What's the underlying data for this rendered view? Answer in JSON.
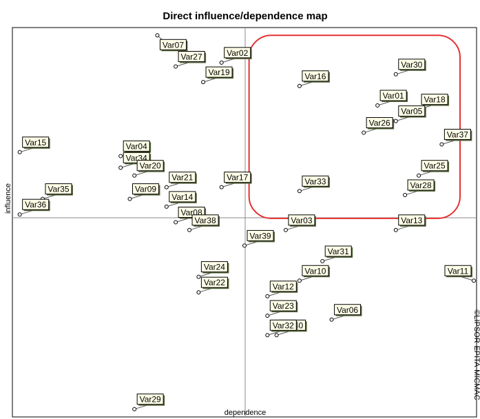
{
  "chart_data": {
    "type": "scatter",
    "title": "Direct influence/dependence map",
    "xlabel": "dependence",
    "ylabel": "influence",
    "side_note": "©LIPSOR-EPITA-MICMAC",
    "xlim": [
      0,
      100
    ],
    "ylim": [
      0,
      100
    ],
    "highlight": {
      "shape": "rounded-rectangle",
      "color": "#e53030",
      "x_range": [
        51,
        97
      ],
      "y_range": [
        51,
        98
      ]
    },
    "points": [
      {
        "label": "Var07",
        "x": 31,
        "y": 98
      },
      {
        "label": "Var02",
        "x": 45,
        "y": 91
      },
      {
        "label": "Var27",
        "x": 35,
        "y": 90
      },
      {
        "label": "Var19",
        "x": 41,
        "y": 86
      },
      {
        "label": "Var30",
        "x": 83,
        "y": 88
      },
      {
        "label": "Var16",
        "x": 62,
        "y": 85
      },
      {
        "label": "Var01",
        "x": 79,
        "y": 80
      },
      {
        "label": "Var18",
        "x": 88,
        "y": 79
      },
      {
        "label": "Var26",
        "x": 76,
        "y": 73
      },
      {
        "label": "Var05",
        "x": 83,
        "y": 76
      },
      {
        "label": "Var37",
        "x": 93,
        "y": 70
      },
      {
        "label": "Var15",
        "x": 1,
        "y": 68
      },
      {
        "label": "Var04",
        "x": 23,
        "y": 67
      },
      {
        "label": "Var34",
        "x": 23,
        "y": 64
      },
      {
        "label": "Var20",
        "x": 26,
        "y": 62
      },
      {
        "label": "Var21",
        "x": 33,
        "y": 59
      },
      {
        "label": "Var17",
        "x": 45,
        "y": 59
      },
      {
        "label": "Var33",
        "x": 62,
        "y": 58
      },
      {
        "label": "Var28",
        "x": 85,
        "y": 57
      },
      {
        "label": "Var25",
        "x": 88,
        "y": 62
      },
      {
        "label": "Var35",
        "x": 6,
        "y": 56
      },
      {
        "label": "Var09",
        "x": 25,
        "y": 56
      },
      {
        "label": "Var14",
        "x": 33,
        "y": 54
      },
      {
        "label": "Var08",
        "x": 35,
        "y": 50
      },
      {
        "label": "Var36",
        "x": 1,
        "y": 52
      },
      {
        "label": "Var03",
        "x": 59,
        "y": 48
      },
      {
        "label": "Var13",
        "x": 83,
        "y": 48
      },
      {
        "label": "Var38",
        "x": 38,
        "y": 48
      },
      {
        "label": "Var39",
        "x": 50,
        "y": 44
      },
      {
        "label": "Var31",
        "x": 67,
        "y": 40
      },
      {
        "label": "Var24",
        "x": 40,
        "y": 36
      },
      {
        "label": "Var11",
        "x": 100,
        "y": 35
      },
      {
        "label": "Var10",
        "x": 62,
        "y": 35
      },
      {
        "label": "Var12",
        "x": 55,
        "y": 31
      },
      {
        "label": "Var23",
        "x": 55,
        "y": 26
      },
      {
        "label": "Var22",
        "x": 40,
        "y": 32
      },
      {
        "label": "Var06",
        "x": 69,
        "y": 25
      },
      {
        "label": "Var40",
        "x": 57,
        "y": 21
      },
      {
        "label": "Var32",
        "x": 55,
        "y": 21
      },
      {
        "label": "Var29",
        "x": 26,
        "y": 2
      }
    ]
  }
}
